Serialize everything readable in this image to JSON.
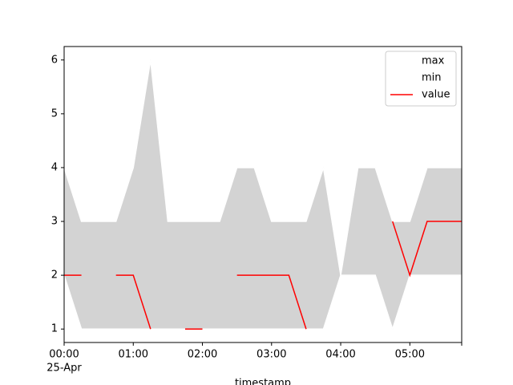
{
  "chart_data": {
    "type": "line",
    "x": [
      "00:00",
      "00:15",
      "00:30",
      "00:45",
      "01:00",
      "01:15",
      "01:30",
      "01:45",
      "02:00",
      "02:15",
      "02:30",
      "02:45",
      "03:00",
      "03:15",
      "03:30",
      "03:45",
      "04:00",
      "04:15",
      "04:30",
      "04:45",
      "05:00",
      "05:15",
      "05:30",
      "05:45"
    ],
    "series": [
      {
        "name": "max",
        "color": "#ffffff",
        "values": [
          4,
          3,
          3,
          3,
          4,
          6,
          3,
          3,
          3,
          3,
          4,
          4,
          3,
          3,
          3,
          4,
          2,
          4,
          4,
          3,
          3,
          4,
          4,
          4
        ]
      },
      {
        "name": "min",
        "color": "#ffffff",
        "values": [
          2,
          1,
          1,
          1,
          1,
          1,
          1,
          1,
          1,
          1,
          1,
          1,
          1,
          1,
          1,
          1,
          2,
          2,
          2,
          1,
          2,
          2,
          2,
          2
        ]
      },
      {
        "name": "value",
        "color": "#ff0000",
        "values": [
          2,
          2,
          null,
          2,
          2,
          1,
          null,
          1,
          1,
          null,
          2,
          2,
          2,
          2,
          1,
          null,
          null,
          null,
          null,
          3,
          2,
          3,
          3,
          3
        ]
      }
    ],
    "fill_color": "#d3d3d3",
    "xlim": [
      "00:00",
      "05:45"
    ],
    "xticks": [
      "00:00",
      "01:00",
      "02:00",
      "03:00",
      "04:00",
      "05:00"
    ],
    "xtick_date": "25-Apr",
    "ylim": [
      0.75,
      6.25
    ],
    "yticks": [
      1,
      2,
      3,
      4,
      5,
      6
    ],
    "xlabel": "timestamp",
    "legend": "upper right"
  }
}
